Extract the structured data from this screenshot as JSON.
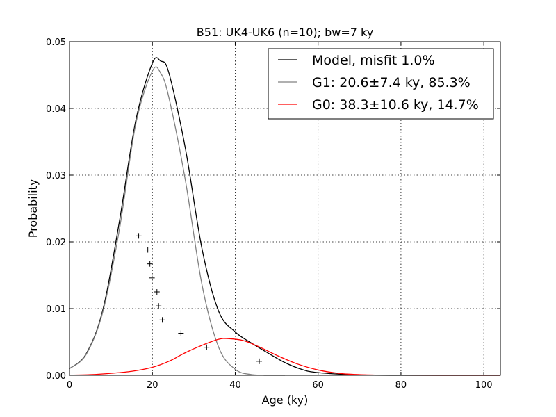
{
  "chart_data": {
    "type": "line",
    "title": "B51: UK4-UK6 (n=10); bw=7 ky",
    "xlabel": "Age (ky)",
    "ylabel": "Probability",
    "xlim": [
      0,
      104
    ],
    "ylim": [
      0,
      0.05
    ],
    "xticks": [
      0,
      20,
      40,
      60,
      80,
      100
    ],
    "xtick_labels": [
      "0",
      "20",
      "40",
      "60",
      "80",
      "100"
    ],
    "yticks": [
      0,
      0.01,
      0.02,
      0.03,
      0.04,
      0.05
    ],
    "ytick_labels": [
      "0.00",
      "0.01",
      "0.02",
      "0.03",
      "0.04",
      "0.05"
    ],
    "grid": true,
    "legend_position": "top-right",
    "series": [
      {
        "name": "Model, misfit 1.0%",
        "color": "#000000",
        "x": [
          0,
          4,
          8,
          12,
          16,
          20,
          22,
          24,
          28,
          32,
          36,
          40,
          44,
          48,
          52,
          56,
          60,
          70,
          80,
          104
        ],
        "y": [
          0.001,
          0.0032,
          0.0097,
          0.0229,
          0.0382,
          0.0468,
          0.0471,
          0.0453,
          0.0339,
          0.0189,
          0.0096,
          0.0065,
          0.0048,
          0.0033,
          0.0019,
          0.0009,
          0.0004,
          5e-05,
          0.0,
          0.0
        ]
      },
      {
        "name": "G1: 20.6±7.4 ky, 85.3%",
        "color": "#808080",
        "x": [
          0,
          4,
          8,
          12,
          16,
          20,
          22,
          24,
          28,
          32,
          36,
          40,
          44,
          48,
          52
        ],
        "y": [
          0.001,
          0.0031,
          0.0094,
          0.0217,
          0.0377,
          0.0456,
          0.0453,
          0.0416,
          0.0291,
          0.0135,
          0.0042,
          0.0009,
          0.0001,
          0.0,
          0.0
        ]
      },
      {
        "name": "G0: 38.3±10.6 ky, 14.7%",
        "color": "#ff0000",
        "x": [
          0,
          5,
          10,
          15,
          20,
          24,
          28,
          32,
          36,
          38.3,
          42,
          46,
          50,
          55,
          60,
          65,
          70,
          75,
          80,
          90,
          104
        ],
        "y": [
          2e-05,
          0.0001,
          0.0003,
          0.0006,
          0.0012,
          0.0021,
          0.0034,
          0.0045,
          0.0054,
          0.0055,
          0.0052,
          0.0042,
          0.003,
          0.0017,
          0.0008,
          0.0003,
          0.0001,
          3e-05,
          1e-05,
          0.0,
          0.0
        ]
      }
    ],
    "data_points": {
      "marker": "+",
      "color": "#000000",
      "x": [
        16.7,
        18.9,
        19.4,
        19.9,
        21.1,
        21.5,
        22.4,
        26.9,
        33.1,
        45.8
      ],
      "y": [
        0.0209,
        0.0188,
        0.0167,
        0.0146,
        0.0125,
        0.0104,
        0.0083,
        0.0063,
        0.0042,
        0.0021
      ]
    }
  }
}
